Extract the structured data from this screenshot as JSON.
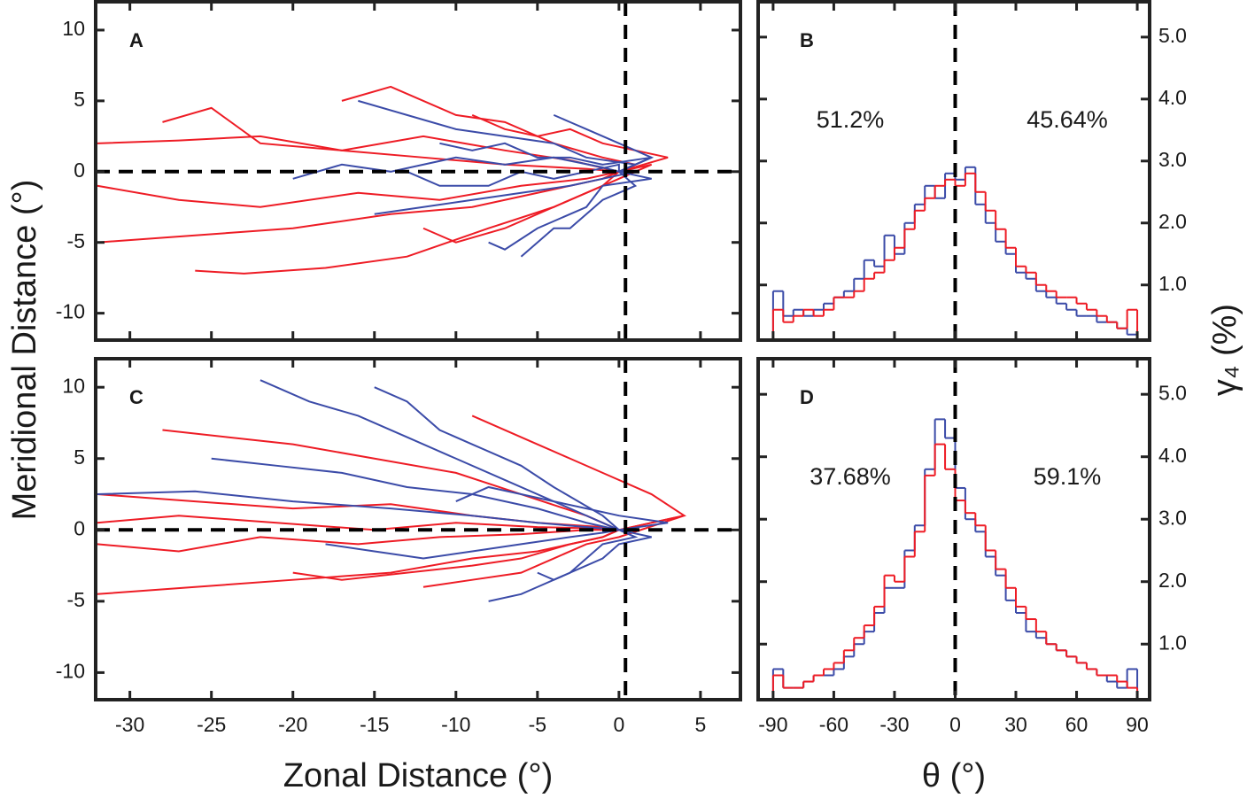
{
  "chart_data": [
    {
      "type": "trajectory",
      "label": "A",
      "ylabel": "Meridional Distance (°)",
      "xlim": [
        -32.1,
        7.45
      ],
      "ylim": [
        -11.9,
        12
      ],
      "xticks": [
        -30,
        -25,
        -20,
        -15,
        -10,
        -5,
        0,
        5
      ],
      "yticks": [
        -10,
        -5,
        0,
        5,
        10
      ],
      "xtick_labels": false,
      "ytick_labels": true,
      "y_axis_side": "left",
      "reference_lines": {
        "x": 0.4,
        "y": 0
      },
      "series": [
        {
          "color": "#ee1c25",
          "x": [
            -32,
            -27,
            -22,
            -17,
            -12,
            -7,
            -2,
            0
          ],
          "y": [
            2,
            2.2,
            2.5,
            1.5,
            1,
            0.5,
            0.2,
            0
          ]
        },
        {
          "color": "#ee1c25",
          "x": [
            -32,
            -26,
            -20,
            -14,
            -9,
            -5,
            -1,
            0
          ],
          "y": [
            -5,
            -4.5,
            -4,
            -3,
            -2.5,
            -1.5,
            -0.5,
            0
          ]
        },
        {
          "color": "#ee1c25",
          "x": [
            -26,
            -23,
            -18,
            -13,
            -8,
            -4,
            -1,
            0
          ],
          "y": [
            -7,
            -7.2,
            -6.8,
            -6,
            -4,
            -2.5,
            -1,
            0
          ]
        },
        {
          "color": "#ee1c25",
          "x": [
            -28,
            -25,
            -22,
            -17,
            -12,
            -7,
            -3,
            0
          ],
          "y": [
            3.5,
            4.5,
            2,
            1.5,
            2.5,
            1.5,
            0.8,
            0
          ]
        },
        {
          "color": "#ee1c25",
          "x": [
            -17,
            -14,
            -10,
            -7,
            -4,
            -1,
            1,
            0
          ],
          "y": [
            5,
            6,
            4,
            3.5,
            2,
            1,
            0.5,
            0
          ]
        },
        {
          "color": "#ee1c25",
          "x": [
            -32,
            -27,
            -22,
            -16,
            -11,
            -6,
            -2,
            0
          ],
          "y": [
            -1,
            -2,
            -2.5,
            -1.5,
            -2,
            -1,
            -0.5,
            0
          ]
        },
        {
          "color": "#ee1c25",
          "x": [
            -12,
            -10,
            -7,
            -5,
            -3,
            -1,
            2,
            0
          ],
          "y": [
            -4,
            -5,
            -4,
            -3,
            -2,
            -1,
            0.5,
            0
          ]
        },
        {
          "color": "#ee1c25",
          "x": [
            -9,
            -7,
            -5,
            -3,
            -1,
            1,
            3,
            0
          ],
          "y": [
            4,
            3,
            2.5,
            3,
            2,
            1.5,
            1,
            0
          ]
        },
        {
          "color": "#3b4ba8",
          "x": [
            -16,
            -13,
            -10,
            -7,
            -4,
            -2,
            1,
            0
          ],
          "y": [
            5,
            4,
            3,
            2.5,
            2,
            1,
            0.5,
            0
          ]
        },
        {
          "color": "#3b4ba8",
          "x": [
            -15,
            -12,
            -9,
            -6,
            -3,
            -1,
            1,
            0
          ],
          "y": [
            -3,
            -2.5,
            -2,
            -1.5,
            -1,
            -0.5,
            0,
            0
          ]
        },
        {
          "color": "#3b4ba8",
          "x": [
            -8,
            -7,
            -5,
            -4,
            -2,
            -1,
            2,
            0
          ],
          "y": [
            -5,
            -5.5,
            -4,
            -3.5,
            -2.5,
            -1,
            -0.5,
            0
          ]
        },
        {
          "color": "#3b4ba8",
          "x": [
            -11,
            -9,
            -7,
            -5,
            -3,
            -1,
            2,
            0
          ],
          "y": [
            2,
            1.5,
            2,
            1,
            1,
            0.5,
            1,
            0
          ]
        },
        {
          "color": "#3b4ba8",
          "x": [
            -6,
            -5,
            -4,
            -3,
            -2,
            -1,
            1,
            0
          ],
          "y": [
            -6,
            -5,
            -4,
            -4,
            -3,
            -2,
            -1,
            0
          ]
        },
        {
          "color": "#3b4ba8",
          "x": [
            -13,
            -11,
            -8,
            -6,
            -4,
            -2,
            0,
            0
          ],
          "y": [
            0,
            -1,
            -1,
            0,
            -0.5,
            0,
            0.5,
            0
          ]
        },
        {
          "color": "#3b4ba8",
          "x": [
            -20,
            -17,
            -14,
            -10,
            -7,
            -4,
            -1,
            0
          ],
          "y": [
            -0.5,
            0.5,
            0,
            1,
            0.5,
            1,
            0.3,
            0
          ]
        },
        {
          "color": "#3b4ba8",
          "x": [
            -4,
            -3,
            -2,
            -1,
            0,
            1,
            2,
            0
          ],
          "y": [
            4,
            3.5,
            3,
            2.5,
            2,
            1.5,
            1,
            0
          ]
        }
      ]
    },
    {
      "type": "histogram",
      "label": "B",
      "y2label": "γ₄ (%)",
      "xlim": [
        -97.4,
        96.1
      ],
      "ylim": [
        0.11,
        5.57
      ],
      "xticks": [
        -90,
        -60,
        -30,
        0,
        30,
        60,
        90
      ],
      "yticks": [
        {
          "value": 1,
          "label": "1.0"
        },
        {
          "value": 2,
          "label": "2.0"
        },
        {
          "value": 3,
          "label": "3.0"
        },
        {
          "value": 4,
          "label": "4.0"
        },
        {
          "value": 5,
          "label": "5.0"
        }
      ],
      "xtick_labels": false,
      "ytick_labels": true,
      "y_axis_side": "right",
      "reference_lines": {
        "x": 0
      },
      "annotations": [
        "51.2%",
        "45.64%"
      ],
      "bins": [
        -90,
        -85,
        -80,
        -75,
        -70,
        -65,
        -60,
        -55,
        -50,
        -45,
        -40,
        -35,
        -30,
        -25,
        -20,
        -15,
        -10,
        -5,
        0,
        5,
        10,
        15,
        20,
        25,
        30,
        35,
        40,
        45,
        50,
        55,
        60,
        65,
        70,
        75,
        80,
        85,
        90
      ],
      "series": [
        {
          "color": "#3b4ba8",
          "values": [
            0.9,
            0.5,
            0.6,
            0.5,
            0.6,
            0.7,
            0.8,
            0.9,
            1.1,
            1.4,
            1.3,
            1.8,
            1.5,
            2.0,
            2.3,
            2.6,
            2.4,
            2.8,
            2.7,
            2.9,
            2.3,
            2.0,
            1.7,
            1.5,
            1.2,
            1.1,
            0.9,
            0.8,
            0.7,
            0.6,
            0.5,
            0.5,
            0.4,
            0.4,
            0.3,
            0.2
          ]
        },
        {
          "color": "#ee1c25",
          "values": [
            0.6,
            0.4,
            0.5,
            0.6,
            0.5,
            0.6,
            0.8,
            0.8,
            0.9,
            1.1,
            1.2,
            1.4,
            1.6,
            1.9,
            2.2,
            2.4,
            2.6,
            2.7,
            2.6,
            2.8,
            2.5,
            2.2,
            1.9,
            1.6,
            1.3,
            1.2,
            1.0,
            0.9,
            0.8,
            0.8,
            0.7,
            0.6,
            0.5,
            0.4,
            0.3,
            0.6
          ]
        }
      ]
    },
    {
      "type": "trajectory",
      "label": "C",
      "xlabel": "Zonal Distance (°)",
      "xlim": [
        -32.1,
        7.45
      ],
      "ylim": [
        -11.9,
        12
      ],
      "xticks": [
        -30,
        -25,
        -20,
        -15,
        -10,
        -5,
        0,
        5
      ],
      "yticks": [
        -10,
        -5,
        0,
        5,
        10
      ],
      "xtick_labels": true,
      "ytick_labels": true,
      "y_axis_side": "left",
      "reference_lines": {
        "x": 0.4,
        "y": 0
      },
      "series": [
        {
          "color": "#ee1c25",
          "x": [
            -32,
            -26,
            -20,
            -14,
            -9,
            -5,
            -1,
            0
          ],
          "y": [
            2.5,
            2,
            1.5,
            1.8,
            1,
            0.5,
            0.2,
            0
          ]
        },
        {
          "color": "#ee1c25",
          "x": [
            -32,
            -26,
            -20,
            -14,
            -9,
            -5,
            -1,
            0
          ],
          "y": [
            -4.5,
            -4,
            -3.5,
            -3,
            -2,
            -1.5,
            -0.5,
            0
          ]
        },
        {
          "color": "#ee1c25",
          "x": [
            -32,
            -27,
            -22,
            -16,
            -11,
            -6,
            -2,
            0
          ],
          "y": [
            -1,
            -1.5,
            -0.5,
            -1,
            -0.5,
            -0.3,
            0,
            0
          ]
        },
        {
          "color": "#ee1c25",
          "x": [
            -28,
            -24,
            -20,
            -15,
            -10,
            -6,
            -2,
            0
          ],
          "y": [
            7,
            6.5,
            6,
            5,
            4,
            2.5,
            1,
            0
          ]
        },
        {
          "color": "#ee1c25",
          "x": [
            -9,
            -7,
            -5,
            -3,
            -1,
            2,
            4,
            0
          ],
          "y": [
            8,
            7,
            6,
            5,
            4,
            2.5,
            1,
            0
          ]
        },
        {
          "color": "#ee1c25",
          "x": [
            -20,
            -17,
            -13,
            -9,
            -6,
            -3,
            -1,
            0
          ],
          "y": [
            -3,
            -3.5,
            -3,
            -2.5,
            -2,
            -1,
            -0.5,
            0
          ]
        },
        {
          "color": "#ee1c25",
          "x": [
            -12,
            -9,
            -6,
            -4,
            -2,
            0,
            4,
            0
          ],
          "y": [
            -4,
            -3.5,
            -3,
            -2,
            -1,
            -0.5,
            1,
            0
          ]
        },
        {
          "color": "#ee1c25",
          "x": [
            -32,
            -27,
            -21,
            -15,
            -10,
            -5,
            -1,
            0
          ],
          "y": [
            0.5,
            1,
            0.5,
            0,
            0.5,
            0.2,
            0.1,
            0
          ]
        },
        {
          "color": "#3b4ba8",
          "x": [
            -22,
            -19,
            -16,
            -13,
            -10,
            -7,
            -3,
            0
          ],
          "y": [
            10.5,
            9,
            8,
            6.5,
            5,
            3.5,
            1.5,
            0
          ]
        },
        {
          "color": "#3b4ba8",
          "x": [
            -15,
            -13,
            -11,
            -9,
            -6,
            -4,
            -1,
            0
          ],
          "y": [
            10,
            9,
            7,
            6,
            4.5,
            3,
            1,
            0
          ]
        },
        {
          "color": "#3b4ba8",
          "x": [
            -25,
            -21,
            -17,
            -13,
            -9,
            -5,
            -2,
            0
          ],
          "y": [
            5,
            4.5,
            4,
            3,
            2.5,
            1.5,
            0.5,
            0
          ]
        },
        {
          "color": "#3b4ba8",
          "x": [
            -32,
            -26,
            -20,
            -14,
            -9,
            -5,
            -2,
            0
          ],
          "y": [
            2.5,
            2.7,
            2,
            1.5,
            1,
            0.5,
            0.2,
            0
          ]
        },
        {
          "color": "#3b4ba8",
          "x": [
            -8,
            -6,
            -5,
            -3,
            -2,
            -1,
            1,
            0
          ],
          "y": [
            -5,
            -4.5,
            -4,
            -3,
            -2,
            -1,
            -0.5,
            0
          ]
        },
        {
          "color": "#3b4ba8",
          "x": [
            -18,
            -15,
            -12,
            -9,
            -6,
            -3,
            -1,
            0
          ],
          "y": [
            -1,
            -1.5,
            -2,
            -1.5,
            -1,
            -0.5,
            -0.2,
            0
          ]
        },
        {
          "color": "#3b4ba8",
          "x": [
            -10,
            -8,
            -6,
            -4,
            -2,
            0,
            3,
            0
          ],
          "y": [
            2,
            3,
            2.5,
            2,
            1.5,
            1,
            0.5,
            0
          ]
        },
        {
          "color": "#3b4ba8",
          "x": [
            -5,
            -4,
            -3,
            -2,
            -1,
            0,
            2,
            0
          ],
          "y": [
            -3,
            -3.5,
            -3,
            -2.5,
            -2,
            -1,
            -0.5,
            0
          ]
        }
      ]
    },
    {
      "type": "histogram",
      "label": "D",
      "xlabel": "θ (°)",
      "xlim": [
        -97.4,
        96.1
      ],
      "ylim": [
        0.11,
        5.57
      ],
      "xticks": [
        -90,
        -60,
        -30,
        0,
        30,
        60,
        90
      ],
      "yticks": [
        {
          "value": 1,
          "label": "1.0"
        },
        {
          "value": 2,
          "label": "2.0"
        },
        {
          "value": 3,
          "label": "3.0"
        },
        {
          "value": 4,
          "label": "4.0"
        },
        {
          "value": 5,
          "label": "5.0"
        }
      ],
      "xtick_labels": true,
      "ytick_labels": true,
      "y_axis_side": "right",
      "reference_lines": {
        "x": 0
      },
      "annotations": [
        "37.68%",
        "59.1%"
      ],
      "bins": [
        -90,
        -85,
        -80,
        -75,
        -70,
        -65,
        -60,
        -55,
        -50,
        -45,
        -40,
        -35,
        -30,
        -25,
        -20,
        -15,
        -10,
        -5,
        0,
        5,
        10,
        15,
        20,
        25,
        30,
        35,
        40,
        45,
        50,
        55,
        60,
        65,
        70,
        75,
        80,
        85,
        90
      ],
      "series": [
        {
          "color": "#3b4ba8",
          "values": [
            0.6,
            0.3,
            0.3,
            0.4,
            0.5,
            0.5,
            0.6,
            0.8,
            1.0,
            1.2,
            1.5,
            1.9,
            1.9,
            2.5,
            2.9,
            3.8,
            4.6,
            4.3,
            3.5,
            3.0,
            2.8,
            2.4,
            2.1,
            1.7,
            1.5,
            1.2,
            1.1,
            1.0,
            0.9,
            0.8,
            0.7,
            0.6,
            0.5,
            0.4,
            0.3,
            0.6
          ]
        },
        {
          "color": "#ee1c25",
          "values": [
            0.5,
            0.3,
            0.3,
            0.4,
            0.5,
            0.6,
            0.7,
            0.9,
            1.1,
            1.3,
            1.6,
            2.1,
            2.0,
            2.4,
            2.8,
            3.7,
            4.2,
            3.8,
            3.3,
            3.1,
            2.9,
            2.5,
            2.2,
            1.9,
            1.6,
            1.4,
            1.2,
            1.0,
            0.9,
            0.8,
            0.7,
            0.6,
            0.5,
            0.5,
            0.4,
            0.3
          ]
        }
      ]
    }
  ]
}
